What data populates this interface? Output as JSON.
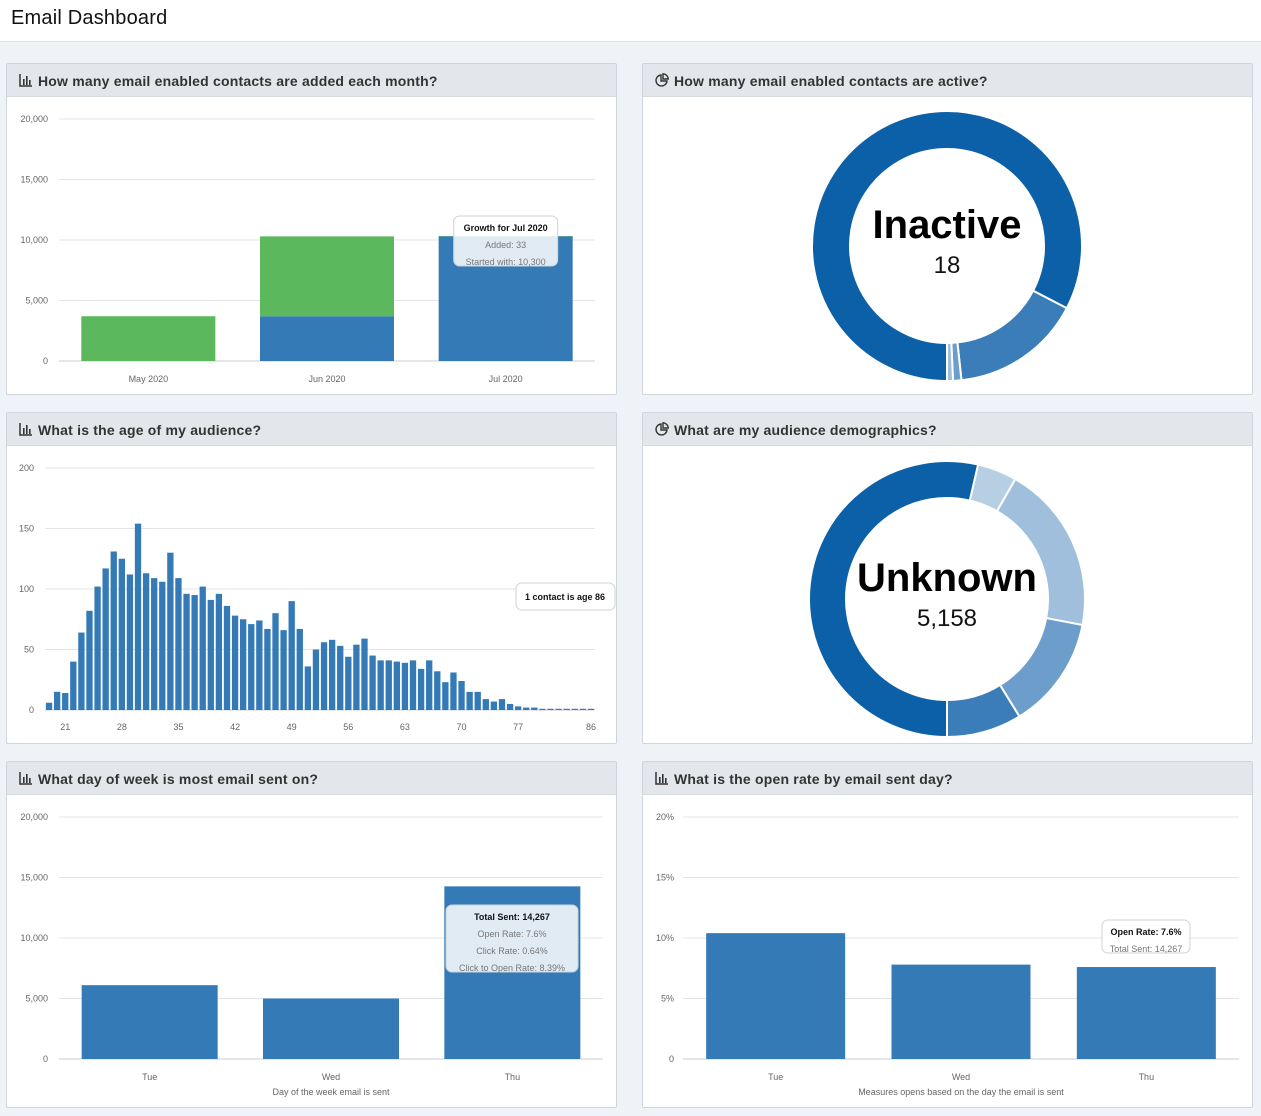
{
  "page": {
    "title": "Email Dashboard"
  },
  "colors": {
    "primary": "#337ab7",
    "green": "#5cb85c",
    "dark_blue": "#0c60a8",
    "mid_blue": "#3a7db9",
    "light_blue": "#6d9ecb",
    "lighter_blue": "#9fbfdc",
    "lightest_blue": "#b6cfe3"
  },
  "panels": {
    "monthly": {
      "title": "How many email enabled contacts are added each month?",
      "icon": "bar-chart-icon"
    },
    "active": {
      "title": "How many email enabled contacts are active?",
      "icon": "pie-chart-icon"
    },
    "age": {
      "title": "What is the age of my audience?",
      "icon": "bar-chart-icon"
    },
    "demographics": {
      "title": "What are my audience demographics?",
      "icon": "pie-chart-icon"
    },
    "dow": {
      "title": "What day of week is most email sent on?",
      "icon": "bar-chart-icon"
    },
    "openrate": {
      "title": "What is the open rate by email sent day?",
      "icon": "bar-chart-icon"
    }
  },
  "chart_data": [
    {
      "id": "monthly",
      "type": "bar",
      "stacked": true,
      "categories": [
        "May 2020",
        "Jun 2020",
        "Jul 2020"
      ],
      "series": [
        {
          "name": "Started with",
          "color": "#337ab7",
          "values": [
            0,
            3700,
            10300
          ]
        },
        {
          "name": "Added",
          "color": "#5cb85c",
          "values": [
            3700,
            6600,
            33
          ]
        }
      ],
      "ylim": [
        0,
        20000
      ],
      "yticks": [
        0,
        5000,
        10000,
        15000,
        20000
      ],
      "ytick_labels": [
        "0",
        "5,000",
        "10,000",
        "15,000",
        "20,000"
      ],
      "tooltip": {
        "title": "Growth for Jul 2020",
        "lines": [
          "Added: 33",
          "Started with: 10,300"
        ]
      },
      "grid": true
    },
    {
      "id": "active",
      "type": "pie",
      "donut": true,
      "center_label": "Inactive",
      "center_value": "18",
      "slices": [
        {
          "value": 58,
          "color": "#0c60a8"
        },
        {
          "value": 11,
          "color": "#3a7db9"
        },
        {
          "value": 0.7,
          "color": "#6d9ecb"
        },
        {
          "value": 0.5,
          "color": "#9fbfdc"
        }
      ]
    },
    {
      "id": "age",
      "type": "bar",
      "x_start": 19,
      "values": [
        6,
        15,
        14,
        40,
        64,
        82,
        102,
        117,
        131,
        125,
        112,
        154,
        113,
        109,
        106,
        130,
        109,
        96,
        95,
        102,
        91,
        96,
        86,
        78,
        75,
        71,
        74,
        67,
        80,
        66,
        90,
        67,
        36,
        50,
        56,
        58,
        53,
        44,
        54,
        59,
        45,
        41,
        41,
        40,
        39,
        41,
        34,
        41,
        32,
        23,
        31,
        24,
        15,
        15,
        9,
        7,
        9,
        5,
        3,
        2,
        2,
        1,
        1,
        1,
        1,
        1,
        1,
        1
      ],
      "ylim": [
        0,
        200
      ],
      "yticks": [
        0,
        50,
        100,
        150,
        200
      ],
      "xticks": [
        "21",
        "28",
        "35",
        "42",
        "49",
        "56",
        "63",
        "70",
        "77",
        "86"
      ],
      "tooltip": {
        "title": "1 contact is age 86"
      },
      "grid": true
    },
    {
      "id": "demographics",
      "type": "pie",
      "donut": true,
      "center_label": "Unknown",
      "center_value": "5,158",
      "slices": [
        {
          "value": 48.8,
          "color": "#0c60a8"
        },
        {
          "value": 4.2,
          "color": "#b6cfe3"
        },
        {
          "value": 18,
          "color": "#9fbfdc"
        },
        {
          "value": 12,
          "color": "#6d9ecb"
        },
        {
          "value": 8,
          "color": "#3a7db9"
        }
      ]
    },
    {
      "id": "dow",
      "type": "bar",
      "categories": [
        "Tue",
        "Wed",
        "Thu"
      ],
      "values": [
        6100,
        5000,
        14267
      ],
      "ylim": [
        0,
        20000
      ],
      "yticks": [
        0,
        5000,
        10000,
        15000,
        20000
      ],
      "ytick_labels": [
        "0",
        "5,000",
        "10,000",
        "15,000",
        "20,000"
      ],
      "xlabel": "Day of the week email is sent",
      "tooltip": {
        "title": "Total Sent: 14,267",
        "lines": [
          "Open Rate: 7.6%",
          "Click Rate: 0.64%",
          "Click to Open Rate: 8.39%"
        ]
      },
      "grid": true
    },
    {
      "id": "openrate",
      "type": "bar",
      "categories": [
        "Tue",
        "Wed",
        "Thu"
      ],
      "values": [
        10.4,
        7.8,
        7.6
      ],
      "ylim": [
        0,
        20
      ],
      "yticks": [
        0,
        5,
        10,
        15,
        20
      ],
      "ytick_labels": [
        "0",
        "5%",
        "10%",
        "15%",
        "20%"
      ],
      "xlabel": "Measures opens based on the day the email is sent",
      "tooltip": {
        "title": "Open Rate: 7.6%",
        "lines": [
          "Total Sent: 14,267"
        ]
      },
      "grid": true
    }
  ]
}
